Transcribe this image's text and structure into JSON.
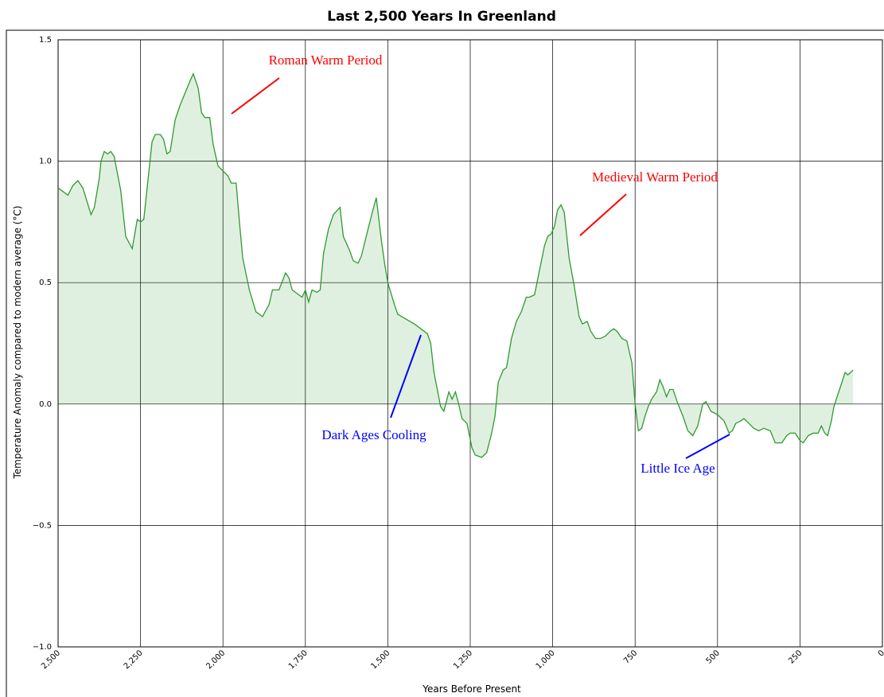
{
  "chart_data": {
    "type": "line",
    "title": "Last 2,500 Years In Greenland",
    "xlabel": "Years Before Present",
    "ylabel": "Temperature Anomaly compared to modern average (°C)",
    "x": [
      2500,
      2470,
      2455,
      2440,
      2425,
      2400,
      2390,
      2375,
      2370,
      2360,
      2350,
      2340,
      2330,
      2310,
      2295,
      2275,
      2260,
      2250,
      2240,
      2215,
      2205,
      2190,
      2180,
      2170,
      2160,
      2145,
      2130,
      2115,
      2100,
      2090,
      2075,
      2065,
      2055,
      2040,
      2030,
      2015,
      2000,
      1985,
      1975,
      1960,
      1950,
      1940,
      1920,
      1900,
      1880,
      1860,
      1850,
      1830,
      1810,
      1800,
      1790,
      1770,
      1760,
      1750,
      1740,
      1730,
      1715,
      1705,
      1695,
      1680,
      1665,
      1645,
      1635,
      1615,
      1605,
      1590,
      1580,
      1560,
      1545,
      1535,
      1520,
      1510,
      1500,
      1480,
      1470,
      1420,
      1380,
      1370,
      1360,
      1350,
      1340,
      1330,
      1315,
      1305,
      1295,
      1285,
      1275,
      1260,
      1245,
      1235,
      1215,
      1200,
      1185,
      1175,
      1165,
      1150,
      1140,
      1125,
      1110,
      1095,
      1080,
      1070,
      1055,
      1040,
      1025,
      1015,
      1005,
      995,
      985,
      975,
      965,
      950,
      935,
      920,
      910,
      895,
      885,
      870,
      855,
      840,
      825,
      815,
      805,
      790,
      775,
      760,
      750,
      740,
      730,
      720,
      710,
      700,
      685,
      675,
      665,
      655,
      645,
      635,
      620,
      605,
      590,
      575,
      560,
      545,
      535,
      520,
      505,
      495,
      480,
      465,
      455,
      445,
      430,
      420,
      405,
      390,
      375,
      360,
      340,
      325,
      305,
      290,
      280,
      265,
      250,
      240,
      225,
      210,
      195,
      185,
      175,
      166,
      155,
      147,
      130,
      113,
      105,
      89
    ],
    "values": [
      0.89,
      0.86,
      0.9,
      0.92,
      0.89,
      0.78,
      0.81,
      0.93,
      1.0,
      1.04,
      1.03,
      1.04,
      1.02,
      0.88,
      0.69,
      0.64,
      0.76,
      0.75,
      0.76,
      1.08,
      1.11,
      1.11,
      1.09,
      1.03,
      1.04,
      1.17,
      1.23,
      1.28,
      1.33,
      1.36,
      1.3,
      1.2,
      1.18,
      1.18,
      1.07,
      0.98,
      0.96,
      0.94,
      0.91,
      0.91,
      0.75,
      0.6,
      0.47,
      0.38,
      0.36,
      0.41,
      0.47,
      0.47,
      0.54,
      0.52,
      0.47,
      0.45,
      0.44,
      0.47,
      0.42,
      0.47,
      0.46,
      0.47,
      0.62,
      0.72,
      0.78,
      0.81,
      0.69,
      0.63,
      0.59,
      0.58,
      0.61,
      0.72,
      0.8,
      0.85,
      0.68,
      0.58,
      0.5,
      0.41,
      0.37,
      0.33,
      0.29,
      0.25,
      0.13,
      0.06,
      -0.01,
      -0.03,
      0.05,
      0.02,
      0.05,
      0.0,
      -0.06,
      -0.08,
      -0.18,
      -0.21,
      -0.22,
      -0.2,
      -0.12,
      -0.05,
      0.09,
      0.14,
      0.15,
      0.27,
      0.34,
      0.38,
      0.44,
      0.44,
      0.45,
      0.55,
      0.65,
      0.69,
      0.7,
      0.73,
      0.8,
      0.82,
      0.79,
      0.6,
      0.49,
      0.36,
      0.33,
      0.34,
      0.3,
      0.27,
      0.27,
      0.28,
      0.3,
      0.31,
      0.3,
      0.27,
      0.26,
      0.17,
      0.0,
      -0.11,
      -0.1,
      -0.05,
      -0.01,
      0.02,
      0.05,
      0.1,
      0.07,
      0.03,
      0.06,
      0.06,
      0.0,
      -0.05,
      -0.11,
      -0.13,
      -0.09,
      0.0,
      0.01,
      -0.03,
      -0.04,
      -0.05,
      -0.07,
      -0.12,
      -0.11,
      -0.08,
      -0.07,
      -0.06,
      -0.08,
      -0.1,
      -0.11,
      -0.1,
      -0.11,
      -0.16,
      -0.16,
      -0.13,
      -0.12,
      -0.12,
      -0.15,
      -0.16,
      -0.13,
      -0.12,
      -0.12,
      -0.09,
      -0.12,
      -0.13,
      -0.07,
      -0.01,
      0.06,
      0.13,
      0.12,
      0.14
    ],
    "color": "#2e9a2e",
    "xlim": [
      2500,
      0
    ],
    "ylim": [
      -1.0,
      1.5
    ],
    "xticks": [
      {
        "value": 2500,
        "label": "2,500"
      },
      {
        "value": 2250,
        "label": "2,250"
      },
      {
        "value": 2000,
        "label": "2,000"
      },
      {
        "value": 1750,
        "label": "1,750"
      },
      {
        "value": 1500,
        "label": "1,500"
      },
      {
        "value": 1250,
        "label": "1,250"
      },
      {
        "value": 1000,
        "label": "1,000"
      },
      750,
      500,
      250,
      0
    ],
    "yticks": [
      {
        "value": -1.0,
        "label": "−1.0"
      },
      {
        "value": -0.5,
        "label": "−0.5"
      },
      {
        "value": 0.0,
        "label": "0.0"
      },
      {
        "value": 0.5,
        "label": "0.5"
      },
      {
        "value": 1.0,
        "label": "1.0"
      },
      1.5
    ],
    "grid": true,
    "annotations": [
      {
        "text": "Roman Warm Period",
        "color": "#ff0000"
      },
      {
        "text": "Medieval Warm Period",
        "color": "#ff0000"
      },
      {
        "text": "Dark Ages Cooling",
        "color": "#0000ff"
      },
      {
        "text": "Little Ice Age",
        "color": "#0000ff"
      }
    ]
  }
}
